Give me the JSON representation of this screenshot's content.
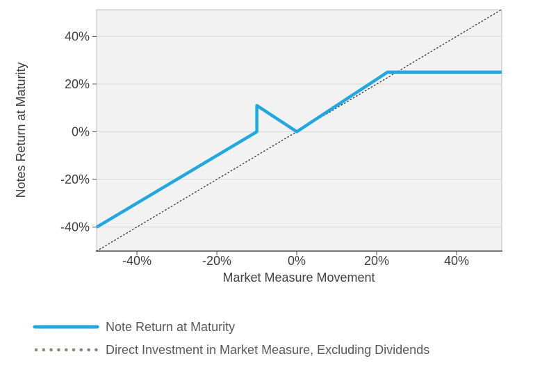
{
  "chart_data": {
    "type": "line",
    "title": "",
    "xlabel": "Market Measure Movement",
    "ylabel": "Notes Return at Maturity",
    "xlim": [
      -50.1,
      51.3
    ],
    "ylim": [
      -50.1,
      51.2
    ],
    "grid": "horizontal-only",
    "x_ticks": [
      {
        "value": -40,
        "label": "-40%"
      },
      {
        "value": -20,
        "label": "-20%"
      },
      {
        "value": 0,
        "label": "0%"
      },
      {
        "value": 20,
        "label": "20%"
      },
      {
        "value": 40,
        "label": "40%"
      }
    ],
    "y_ticks": [
      {
        "value": -40,
        "label": "-40%"
      },
      {
        "value": -20,
        "label": "-20%"
      },
      {
        "value": 0,
        "label": "0%"
      },
      {
        "value": 20,
        "label": "20%"
      },
      {
        "value": 40,
        "label": "40%"
      }
    ],
    "series": [
      {
        "name": "Note Return at Maturity",
        "style": "solid",
        "color": "#1fa8e1",
        "stroke_width": 4.5,
        "points": [
          [
            -50.1,
            -40.1
          ],
          [
            -10,
            0
          ],
          [
            -10,
            11
          ],
          [
            0,
            0
          ],
          [
            22.7,
            25
          ],
          [
            51.3,
            25
          ]
        ]
      },
      {
        "name": "Direct Investment in Market Measure, Excluding Dividends",
        "style": "dotted",
        "color": "#333333",
        "stroke_width": 1.3,
        "points": [
          [
            -50.1,
            -50.1
          ],
          [
            51.2,
            51.2
          ]
        ]
      }
    ],
    "legend": {
      "position": "below-left",
      "entries": [
        {
          "label": "Note Return at Maturity",
          "swatch": "solid-line",
          "color": "#1fa8e1"
        },
        {
          "label": "Direct Investment in Market Measure, Excluding Dividends",
          "swatch": "dotted-line",
          "color": "#8f8678"
        }
      ]
    },
    "colors": {
      "plot_background": "#f2f2f2",
      "gridline": "#d9d9d9",
      "plot_border": "#bfbfbf",
      "axis_line": "#4d4d4d",
      "tick_text": "#404040",
      "legend_text": "#595959"
    }
  }
}
